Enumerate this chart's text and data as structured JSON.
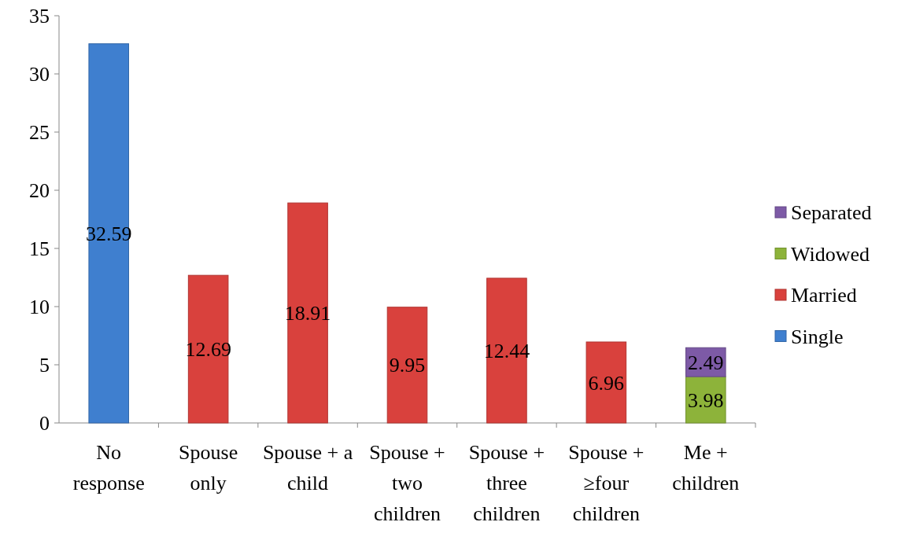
{
  "chart_data": {
    "type": "bar",
    "stacked": true,
    "categories": [
      "No response",
      "Spouse only",
      "Spouse + a child",
      "Spouse + two children",
      "Spouse + three children",
      "Spouse + ≥four children",
      "Me + children"
    ],
    "series": [
      {
        "name": "Single",
        "color": "#3f7fcf",
        "values": [
          32.59,
          null,
          null,
          null,
          null,
          null,
          null
        ]
      },
      {
        "name": "Married",
        "color": "#d9413d",
        "values": [
          null,
          12.69,
          18.91,
          9.95,
          12.44,
          6.96,
          null
        ]
      },
      {
        "name": "Widowed",
        "color": "#8db33a",
        "values": [
          null,
          null,
          null,
          null,
          null,
          null,
          3.98
        ]
      },
      {
        "name": "Separated",
        "color": "#7d5aa6",
        "values": [
          null,
          null,
          null,
          null,
          null,
          null,
          2.49
        ]
      }
    ],
    "ylim": [
      0,
      35
    ],
    "yticks": [
      0,
      5,
      10,
      15,
      20,
      25,
      30,
      35
    ],
    "data_labels": true,
    "legend": "right",
    "grid": false
  }
}
